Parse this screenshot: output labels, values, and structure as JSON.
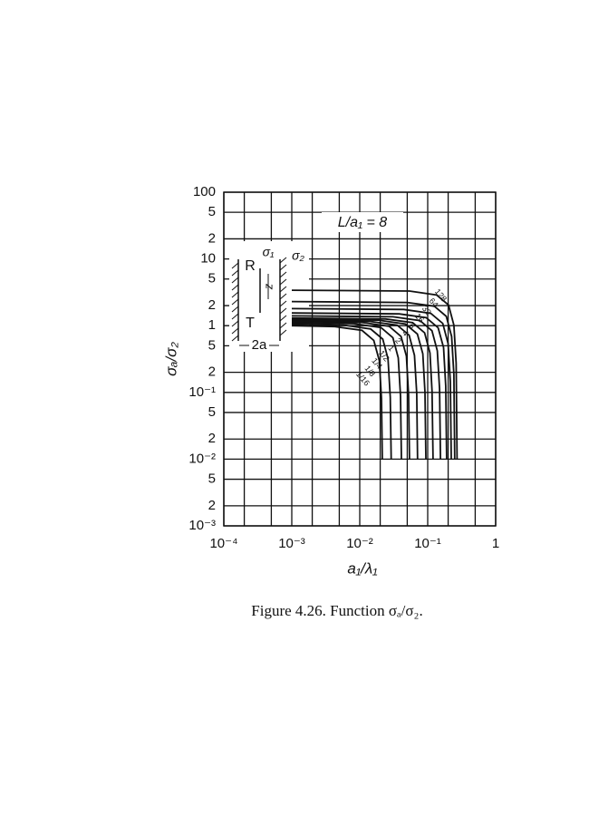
{
  "chart_data": {
    "type": "line",
    "log_x": true,
    "log_y": true,
    "grid": true,
    "annotation": "L/a₁ = 8",
    "x_label": "a₁/λ₁",
    "y_label": "σₐ/σ₂",
    "xlim": [
      0.0001,
      1
    ],
    "ylim": [
      0.001,
      100
    ],
    "xticks": [
      {
        "value": 0.0001,
        "label": "10⁻⁴"
      },
      {
        "value": 0.001,
        "label": "10⁻³"
      },
      {
        "value": 0.01,
        "label": "10⁻²"
      },
      {
        "value": 0.1,
        "label": "10⁻¹"
      },
      1
    ],
    "x_minor_grid": [
      0.0002,
      0.0005,
      0.002,
      0.005,
      0.02,
      0.05,
      0.2,
      0.5
    ],
    "yticks": [
      100,
      {
        "value": 50,
        "label": "5"
      },
      {
        "value": 20,
        "label": "2"
      },
      10,
      {
        "value": 5,
        "label": "5"
      },
      {
        "value": 2,
        "label": "2"
      },
      1,
      {
        "value": 0.5,
        "label": "5"
      },
      {
        "value": 0.2,
        "label": "2"
      },
      {
        "value": 0.1,
        "label": "10⁻¹"
      },
      {
        "value": 0.05,
        "label": "5"
      },
      {
        "value": 0.02,
        "label": "2"
      },
      {
        "value": 0.01,
        "label": "10⁻²"
      },
      {
        "value": 0.005,
        "label": "5"
      },
      {
        "value": 0.002,
        "label": "2"
      },
      {
        "value": 0.001,
        "label": "10⁻³"
      }
    ],
    "color": "#111",
    "series": [
      {
        "name": "128",
        "x": [
          0.001,
          0.054,
          0.135,
          0.2025,
          0.243,
          0.2619,
          0.27
        ],
        "values": [
          3.4,
          3.3,
          2.89,
          2.04,
          1.02,
          0.272,
          0.01
        ]
      },
      {
        "name": "64",
        "x": [
          0.001,
          0.05,
          0.125,
          0.1875,
          0.225,
          0.2425,
          0.25
        ],
        "values": [
          2.3,
          2.23,
          1.96,
          1.38,
          0.69,
          0.184,
          0.01
        ]
      },
      {
        "name": "32",
        "x": [
          0.001,
          0.0444,
          0.111,
          0.1665,
          0.1998,
          0.2153,
          0.222
        ],
        "values": [
          1.8,
          1.75,
          1.53,
          1.08,
          0.54,
          0.144,
          0.01
        ]
      },
      {
        "name": "16",
        "x": [
          0.001,
          0.038,
          0.095,
          0.1425,
          0.171,
          0.1843,
          0.19
        ],
        "values": [
          1.55,
          1.5,
          1.32,
          0.93,
          0.47,
          0.124,
          0.01
        ]
      },
      {
        "name": "8",
        "x": [
          0.001,
          0.0308,
          0.077,
          0.1155,
          0.1386,
          0.1494,
          0.154
        ],
        "values": [
          1.4,
          1.36,
          1.19,
          0.84,
          0.42,
          0.112,
          0.01
        ]
      },
      {
        "name": "4",
        "x": [
          0.001,
          0.024,
          0.06,
          0.09,
          0.108,
          0.116,
          0.12
        ],
        "values": [
          1.3,
          1.26,
          1.11,
          0.78,
          0.39,
          0.104,
          0.01
        ]
      },
      {
        "name": "2",
        "x": [
          0.001,
          0.0188,
          0.047,
          0.0705,
          0.0846,
          0.0912,
          0.094
        ],
        "values": [
          1.25,
          1.21,
          1.06,
          0.75,
          0.38,
          0.1,
          0.01
        ]
      },
      {
        "name": "1",
        "x": [
          0.001,
          0.0142,
          0.0355,
          0.0533,
          0.0639,
          0.0689,
          0.071
        ],
        "values": [
          1.2,
          1.16,
          1.02,
          0.72,
          0.36,
          0.096,
          0.01
        ]
      },
      {
        "name": "1/2",
        "x": [
          0.001,
          0.0108,
          0.027,
          0.0405,
          0.0486,
          0.0524,
          0.054
        ],
        "values": [
          1.15,
          1.12,
          0.98,
          0.69,
          0.35,
          0.092,
          0.01
        ]
      },
      {
        "name": "1/4",
        "x": [
          0.001,
          0.0082,
          0.0205,
          0.0308,
          0.0369,
          0.0398,
          0.041
        ],
        "values": [
          1.1,
          1.07,
          0.94,
          0.66,
          0.33,
          0.088,
          0.01
        ]
      },
      {
        "name": "1/8",
        "x": [
          0.001,
          0.0058,
          0.0145,
          0.0218,
          0.0261,
          0.0281,
          0.029
        ],
        "values": [
          1.05,
          1.02,
          0.89,
          0.63,
          0.32,
          0.084,
          0.01
        ]
      },
      {
        "name": "1/16",
        "x": [
          0.001,
          0.0043,
          0.0108,
          0.0161,
          0.0194,
          0.0209,
          0.0215
        ],
        "values": [
          1,
          0.97,
          0.85,
          0.6,
          0.3,
          0.08,
          0.01
        ]
      }
    ],
    "inset": {
      "top_left": "σ₁",
      "top_right": "σ₂",
      "upper": "R",
      "lower": "T",
      "gap": "z",
      "width": "2a"
    },
    "caption": "Figure 4.26. Function σₐ/σ₂."
  }
}
